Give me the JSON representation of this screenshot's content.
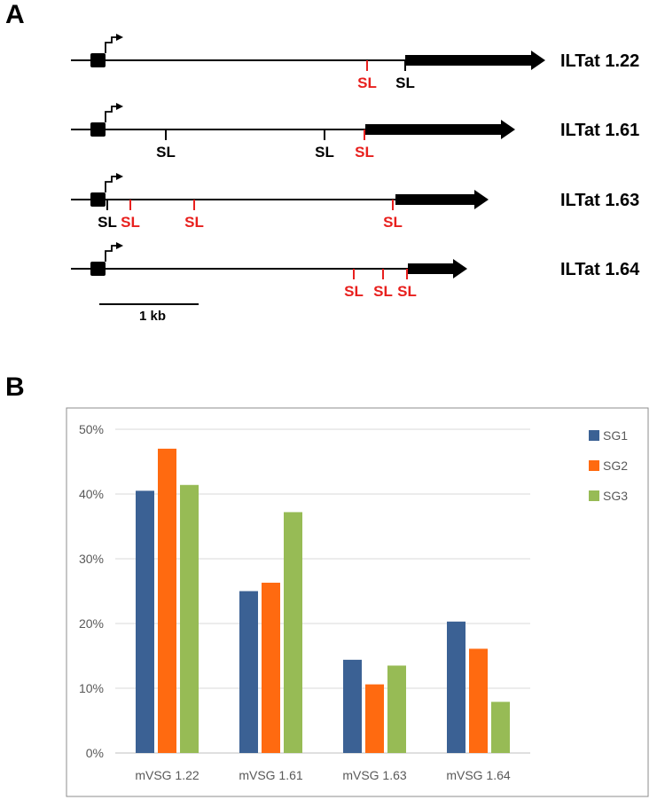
{
  "panel_a": {
    "letter": "A",
    "scale_bar_label": "1 kb",
    "genes": [
      {
        "name": "ILTat 1.22",
        "sites": [
          {
            "label": "SL",
            "color": "red"
          },
          {
            "label": "SL",
            "color": "black"
          }
        ]
      },
      {
        "name": "ILTat 1.61",
        "sites": [
          {
            "label": "SL",
            "color": "black"
          },
          {
            "label": "SL",
            "color": "black"
          },
          {
            "label": "SL",
            "color": "red"
          }
        ]
      },
      {
        "name": "ILTat 1.63",
        "sites": [
          {
            "label": "SL",
            "color": "black"
          },
          {
            "label": "SL",
            "color": "red"
          },
          {
            "label": "SL",
            "color": "red"
          },
          {
            "label": "SL",
            "color": "red"
          }
        ]
      },
      {
        "name": "ILTat 1.64",
        "sites": [
          {
            "label": "SL",
            "color": "red"
          },
          {
            "label": "SL",
            "color": "red"
          },
          {
            "label": "SL",
            "color": "red"
          }
        ]
      }
    ],
    "colors": {
      "black_site": "#000000",
      "red_site": "#e8201e"
    }
  },
  "panel_b": {
    "letter": "B"
  },
  "chart_data": {
    "type": "bar",
    "title": "",
    "xlabel": "",
    "ylabel": "",
    "categories": [
      "mVSG 1.22",
      "mVSG 1.61",
      "mVSG 1.63",
      "mVSG 1.64"
    ],
    "series": [
      {
        "name": "SG1",
        "color": "#3b6194",
        "values": [
          40.5,
          25.0,
          14.4,
          20.3
        ]
      },
      {
        "name": "SG2",
        "color": "#ff6a10",
        "values": [
          47.0,
          26.3,
          10.6,
          16.1
        ]
      },
      {
        "name": "SG3",
        "color": "#97bb55",
        "values": [
          41.4,
          37.2,
          13.5,
          7.9
        ]
      }
    ],
    "ylim": [
      0,
      50
    ],
    "yticks": [
      0,
      10,
      20,
      30,
      40,
      50
    ],
    "ytick_labels": [
      "0%",
      "10%",
      "20%",
      "30%",
      "40%",
      "50%"
    ],
    "grid": true,
    "legend_position": "top-right"
  }
}
